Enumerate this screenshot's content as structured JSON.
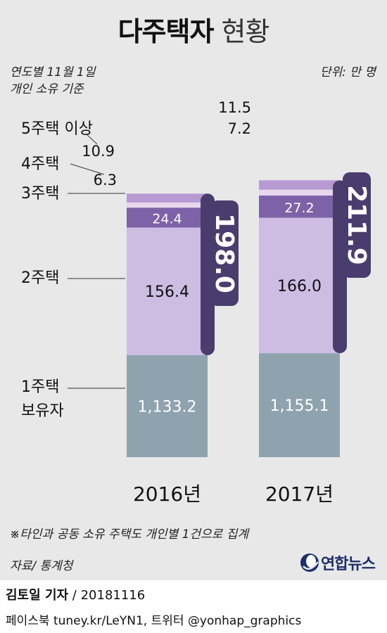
{
  "title": {
    "bold": "다주택자",
    "light": "현황"
  },
  "notes": {
    "basis_line1": "연도별 11월 1일",
    "basis_line2": "개인 소유 기준",
    "unit": "단위: 만 명",
    "footnote": "※타인과 공동 소유 주택도 개인별 1건으로 집계",
    "source": "자료/ 통계청"
  },
  "logo": {
    "text": "연합뉴스",
    "icon": "yonhap-logo-icon"
  },
  "byline": {
    "name": "김토일 기자",
    "rest": " / 20181116"
  },
  "social": "페이스북 tuney.kr/LeYN1, 트위터 @yonhap_graphics",
  "chart_data": {
    "type": "bar",
    "stacked": true,
    "categories": [
      "2016년",
      "2017년"
    ],
    "series": [
      {
        "name": "1주택 보유자",
        "name_lines": [
          "1주택",
          "보유자"
        ],
        "values": [
          1133.2,
          1155.1
        ],
        "labels": [
          "1,133.2",
          "1,155.1"
        ],
        "color": "#8fa3ae"
      },
      {
        "name": "2주택",
        "name_lines": [
          "2주택"
        ],
        "values": [
          156.4,
          166.0
        ],
        "labels": [
          "156.4",
          "166.0"
        ],
        "color": "#cdbde3"
      },
      {
        "name": "3주택",
        "name_lines": [
          "3주택"
        ],
        "values": [
          24.4,
          27.2
        ],
        "labels": [
          "24.4",
          "27.2"
        ],
        "color": "#7e62a8"
      },
      {
        "name": "4주택",
        "name_lines": [
          "4주택"
        ],
        "values": [
          6.3,
          7.2
        ],
        "labels": [
          "6.3",
          "7.2"
        ],
        "color": "#e6d7ec"
      },
      {
        "name": "5주택 이상",
        "name_lines": [
          "5주택 이상"
        ],
        "values": [
          10.9,
          11.5
        ],
        "labels": [
          "10.9",
          "11.5"
        ],
        "color": "#b89ad2"
      }
    ],
    "multi_home_totals": [
      198.0,
      211.9
    ],
    "multi_home_total_labels": [
      "198.0",
      "211.9"
    ],
    "bracket_color": "#4a3d6e",
    "ylim": [
      0,
      1350
    ],
    "legend": "left"
  }
}
